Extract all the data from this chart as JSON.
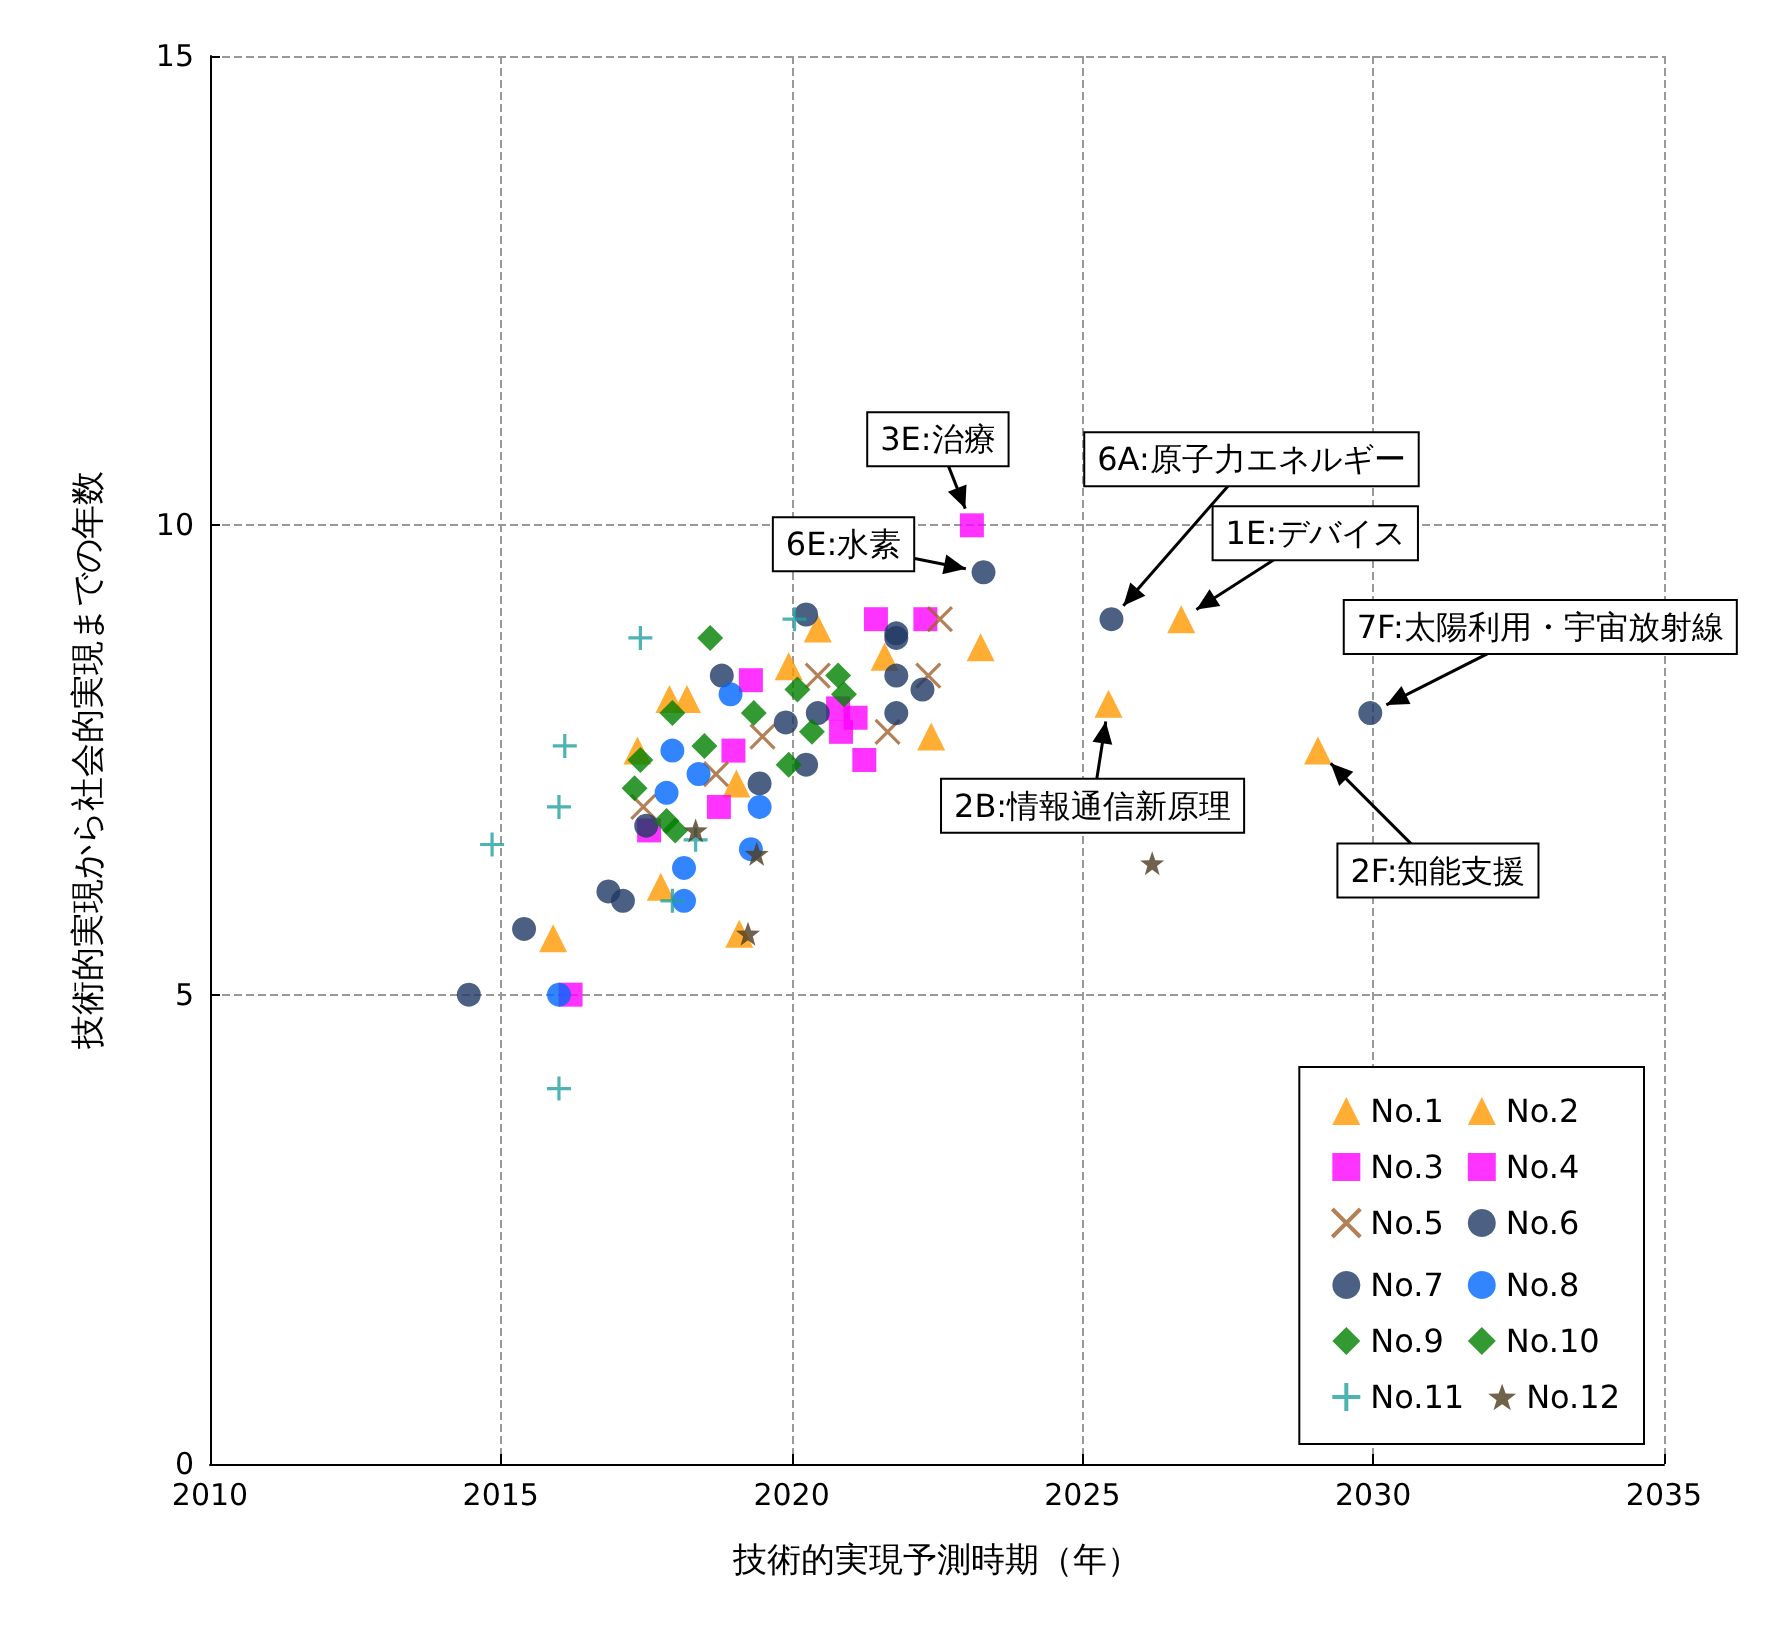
{
  "chart_data": {
    "type": "scatter",
    "xlabel": "技術的実現予測時期（年）",
    "ylabel": "技術的実現から社会的実現までの年数",
    "xlim": [
      2010,
      2035
    ],
    "xticks": [
      2010,
      2015,
      2020,
      2025,
      2030,
      2035
    ],
    "ylim": [
      0,
      15
    ],
    "yticks": [
      0,
      5,
      10,
      15
    ],
    "grid": true,
    "legend": "bottom right",
    "series": [
      {
        "name": "No.1",
        "marker": "triangle",
        "color": "#ff9900",
        "x": [
          2015.9,
          2019.1,
          2019.05,
          2020.45,
          2026.7
        ],
        "values": [
          5.6,
          5.65,
          7.25,
          8.9,
          9.0
        ]
      },
      {
        "name": "No.2",
        "marker": "triangle",
        "color": "#ff9900",
        "x": [
          2017.9,
          2018.2,
          2017.35,
          2017.75,
          2019.95,
          2021.6,
          2023.25,
          2022.4,
          2025.45,
          2029.05
        ],
        "values": [
          8.15,
          8.15,
          7.6,
          6.15,
          8.5,
          8.6,
          8.7,
          7.75,
          8.1,
          7.6
        ]
      },
      {
        "name": "No.3",
        "marker": "square",
        "color": "#ff00ff",
        "x": [
          2023.1,
          2021.45,
          2022.3,
          2019.3,
          2019.0,
          2021.25,
          2018.75,
          2017.55
        ],
        "values": [
          10.0,
          9.0,
          9.0,
          8.35,
          7.6,
          7.5,
          7.0,
          6.75
        ]
      },
      {
        "name": "No.4",
        "marker": "square",
        "color": "#ff00ff",
        "x": [
          2016.2,
          2020.85,
          2021.1,
          2020.8
        ],
        "values": [
          5.0,
          7.8,
          7.95,
          8.05
        ]
      },
      {
        "name": "No.5",
        "marker": "x",
        "color": "#a0622d",
        "x": [
          2022.55,
          2020.45,
          2022.35,
          2019.5,
          2021.65,
          2018.7,
          2017.45
        ],
        "values": [
          9.0,
          8.4,
          8.4,
          7.75,
          7.8,
          7.35,
          7.0
        ]
      },
      {
        "name": "No.6",
        "marker": "circle",
        "color": "#1f3864",
        "x": [
          2023.3,
          2025.5,
          2020.25,
          2021.8,
          2022.25,
          2020.45,
          2018.8,
          2016.85,
          2015.4,
          2014.45,
          2019.45
        ],
        "values": [
          9.5,
          9.0,
          9.05,
          8.8,
          8.25,
          8.0,
          8.4,
          6.1,
          5.7,
          5.0,
          7.25
        ]
      },
      {
        "name": "No.7",
        "marker": "circle",
        "color": "#1f3864",
        "x": [
          2029.95,
          2021.8,
          2021.8,
          2021.8,
          2019.9,
          2020.25,
          2017.1,
          2017.5
        ],
        "values": [
          8.0,
          8.85,
          8.4,
          8.0,
          7.9,
          7.45,
          6.0,
          6.8
        ]
      },
      {
        "name": "No.8",
        "marker": "circle",
        "color": "#0066ff",
        "x": [
          2016.0,
          2018.15,
          2018.15,
          2019.3,
          2017.95,
          2018.4,
          2017.85,
          2018.95,
          2019.45
        ],
        "values": [
          5.0,
          6.35,
          6.0,
          6.55,
          7.6,
          7.35,
          7.15,
          8.2,
          7.0
        ]
      },
      {
        "name": "No.9",
        "marker": "diamond",
        "color": "#008000",
        "x": [
          2020.1,
          2020.8,
          2019.35,
          2020.35,
          2018.0
        ],
        "values": [
          8.25,
          8.4,
          8.0,
          7.8,
          6.75
        ]
      },
      {
        "name": "No.10",
        "marker": "diamond",
        "color": "#008000",
        "x": [
          2018.6,
          2017.95,
          2018.5,
          2017.4,
          2017.3,
          2017.85,
          2020.9,
          2019.95
        ],
        "values": [
          8.8,
          8.0,
          7.65,
          7.5,
          7.2,
          6.85,
          8.2,
          7.45
        ]
      },
      {
        "name": "No.11",
        "marker": "cross",
        "color": "#20a0a0",
        "x": [
          2017.4,
          2016.1,
          2016.0,
          2014.85,
          2016.0,
          2017.95,
          2020.05,
          2018.35
        ],
        "values": [
          8.8,
          7.65,
          7.0,
          6.6,
          4.0,
          6.0,
          9.0,
          6.65
        ]
      },
      {
        "name": "No.12",
        "marker": "star",
        "color": "#4d3b1f",
        "x": [
          2026.2,
          2019.4,
          2019.25,
          2018.35
        ],
        "values": [
          6.4,
          6.5,
          5.65,
          6.75
        ]
      }
    ],
    "annotations": [
      {
        "text": "3E:治療",
        "x": 2023.1,
        "y": 10.0
      },
      {
        "text": "6E:水素",
        "x": 2023.3,
        "y": 9.5
      },
      {
        "text": "6A:原子力エネルギー",
        "x": 2025.5,
        "y": 9.0
      },
      {
        "text": "1E:デバイス",
        "x": 2026.7,
        "y": 9.0
      },
      {
        "text": "7F:太陽利用・宇宙放射線",
        "x": 2029.95,
        "y": 8.0
      },
      {
        "text": "2B:情報通信新原理",
        "x": 2025.45,
        "y": 8.1
      },
      {
        "text": "2F:知能支援",
        "x": 2029.05,
        "y": 7.6
      }
    ]
  }
}
